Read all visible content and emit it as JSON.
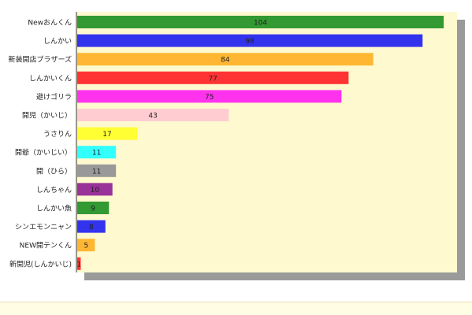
{
  "colors": {
    "plot_bg": "#fff9cf",
    "shadow": "#9a9a9a",
    "axis": "#333333",
    "footer_bg": "#fffde3"
  },
  "chart_data": {
    "type": "bar",
    "orientation": "horizontal",
    "title": "",
    "xlabel": "",
    "ylabel": "",
    "xlim": [
      0,
      108
    ],
    "grid": false,
    "legend": "none",
    "categories": [
      "Newおんくん",
      "しんかい",
      "新装開店ブラザーズ",
      "しんかいくん",
      "避けゴリラ",
      "開児（かいじ）",
      "うさりん",
      "開爺（かいじい）",
      "開（ひら）",
      "しんちゃん",
      "しんかい魚",
      "シンエモンニャン",
      "NEW開テンくん",
      "新開児(しんかいじ)"
    ],
    "values": [
      104,
      98,
      84,
      77,
      75,
      43,
      17,
      11,
      11,
      10,
      9,
      8,
      5,
      1
    ],
    "bar_colors": [
      "#339933",
      "#3333ee",
      "#ffb733",
      "#ff3333",
      "#ff33ee",
      "#ffccd2",
      "#ffff33",
      "#33ffff",
      "#999999",
      "#993399",
      "#339933",
      "#3333ee",
      "#ffb733",
      "#ff3333"
    ]
  }
}
